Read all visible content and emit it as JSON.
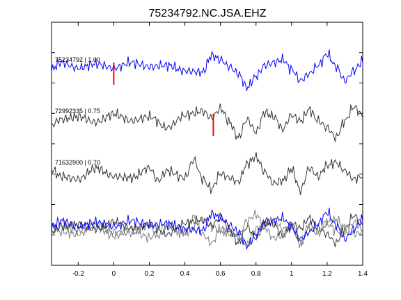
{
  "chart_data": {
    "type": "line",
    "title": "75234792.NC.JSA.EHZ",
    "xlabel": "",
    "ylabel": "",
    "xlim": [
      -0.35,
      1.4
    ],
    "x_ticks": [
      -0.2,
      0,
      0.2,
      0.4,
      0.6,
      0.8,
      1,
      1.2,
      1.4
    ],
    "x_tick_labels": [
      "-0.2",
      "0",
      "0.2",
      "0.4",
      "0.6",
      "0.8",
      "1",
      "1.2",
      "1.4"
    ],
    "y_tick_count": 9,
    "grid": false,
    "colors": {
      "reference": "#0000ff",
      "matched": "#333333",
      "overlay": "#808080",
      "pick": "#ff0000",
      "axes": "#000000"
    },
    "traces": [
      {
        "label": "75234792 | 1.00",
        "color": "#0000ff",
        "pick_time": 0.0,
        "keypoints": [
          [
            -0.35,
            0.3
          ],
          [
            -0.3,
            0.8
          ],
          [
            -0.2,
            0.4
          ],
          [
            -0.1,
            0.7
          ],
          [
            0.0,
            0.4
          ],
          [
            0.1,
            0.8
          ],
          [
            0.2,
            0.5
          ],
          [
            0.3,
            0.6
          ],
          [
            0.4,
            0.2
          ],
          [
            0.5,
            0.1
          ],
          [
            0.55,
            1.3
          ],
          [
            0.6,
            1.0
          ],
          [
            0.65,
            0.5
          ],
          [
            0.7,
            0.0
          ],
          [
            0.75,
            -1.0
          ],
          [
            0.8,
            -0.2
          ],
          [
            0.85,
            0.6
          ],
          [
            0.9,
            0.8
          ],
          [
            0.95,
            1.0
          ],
          [
            1.0,
            0.3
          ],
          [
            1.05,
            -0.5
          ],
          [
            1.1,
            0.0
          ],
          [
            1.15,
            0.6
          ],
          [
            1.2,
            1.4
          ],
          [
            1.25,
            0.5
          ],
          [
            1.3,
            -0.5
          ],
          [
            1.35,
            0.2
          ],
          [
            1.4,
            0.9
          ]
        ]
      },
      {
        "label": "72992335 | 0.75",
        "color": "#333333",
        "pick_time": 0.56,
        "keypoints": [
          [
            -0.35,
            0.0
          ],
          [
            -0.3,
            0.4
          ],
          [
            -0.2,
            0.6
          ],
          [
            -0.1,
            0.2
          ],
          [
            0.0,
            0.8
          ],
          [
            0.1,
            0.3
          ],
          [
            0.2,
            0.6
          ],
          [
            0.3,
            -0.2
          ],
          [
            0.4,
            0.7
          ],
          [
            0.5,
            1.0
          ],
          [
            0.55,
            0.5
          ],
          [
            0.6,
            1.2
          ],
          [
            0.65,
            0.2
          ],
          [
            0.7,
            -0.9
          ],
          [
            0.75,
            0.4
          ],
          [
            0.8,
            -0.5
          ],
          [
            0.85,
            0.9
          ],
          [
            0.9,
            0.6
          ],
          [
            0.95,
            -0.3
          ],
          [
            1.0,
            0.7
          ],
          [
            1.05,
            0.3
          ],
          [
            1.1,
            1.1
          ],
          [
            1.15,
            0.3
          ],
          [
            1.2,
            -0.2
          ],
          [
            1.25,
            -0.9
          ],
          [
            1.3,
            0.3
          ],
          [
            1.35,
            1.3
          ],
          [
            1.4,
            0.7
          ]
        ]
      },
      {
        "label": "71632900 | 0.70",
        "color": "#333333",
        "pick_time": null,
        "keypoints": [
          [
            -0.35,
            0.5
          ],
          [
            -0.3,
            0.0
          ],
          [
            -0.2,
            -0.2
          ],
          [
            -0.1,
            0.6
          ],
          [
            0.0,
            0.0
          ],
          [
            0.1,
            -0.1
          ],
          [
            0.2,
            0.6
          ],
          [
            0.25,
            -0.3
          ],
          [
            0.3,
            0.4
          ],
          [
            0.4,
            -0.1
          ],
          [
            0.45,
            1.2
          ],
          [
            0.5,
            -0.2
          ],
          [
            0.55,
            -0.9
          ],
          [
            0.6,
            0.2
          ],
          [
            0.65,
            -0.1
          ],
          [
            0.7,
            -0.4
          ],
          [
            0.75,
            0.9
          ],
          [
            0.8,
            1.4
          ],
          [
            0.85,
            0.3
          ],
          [
            0.9,
            -0.5
          ],
          [
            0.95,
            -0.3
          ],
          [
            1.0,
            0.5
          ],
          [
            1.05,
            -1.0
          ],
          [
            1.1,
            0.6
          ],
          [
            1.15,
            0.0
          ],
          [
            1.2,
            0.8
          ],
          [
            1.25,
            1.0
          ],
          [
            1.3,
            0.4
          ],
          [
            1.35,
            -0.2
          ],
          [
            1.4,
            0.0
          ]
        ]
      }
    ],
    "overlay": {
      "keypoints": [
        [
          -0.35,
          0.0
        ],
        [
          -0.3,
          0.5
        ],
        [
          -0.2,
          0.1
        ],
        [
          -0.1,
          0.4
        ],
        [
          0.0,
          -0.3
        ],
        [
          0.1,
          0.2
        ],
        [
          0.2,
          -0.4
        ],
        [
          0.3,
          0.5
        ],
        [
          0.4,
          -0.1
        ],
        [
          0.5,
          0.8
        ],
        [
          0.55,
          0.4
        ],
        [
          0.6,
          0.1
        ],
        [
          0.7,
          -0.2
        ],
        [
          0.75,
          -0.9
        ],
        [
          0.8,
          0.2
        ],
        [
          0.85,
          0.5
        ],
        [
          0.9,
          0.9
        ],
        [
          0.95,
          0.2
        ],
        [
          1.0,
          0.4
        ],
        [
          1.05,
          -0.7
        ],
        [
          1.1,
          0.3
        ],
        [
          1.15,
          -0.1
        ],
        [
          1.2,
          0.6
        ],
        [
          1.25,
          0.1
        ],
        [
          1.3,
          -0.2
        ],
        [
          1.35,
          0.7
        ],
        [
          1.4,
          0.2
        ]
      ]
    }
  }
}
